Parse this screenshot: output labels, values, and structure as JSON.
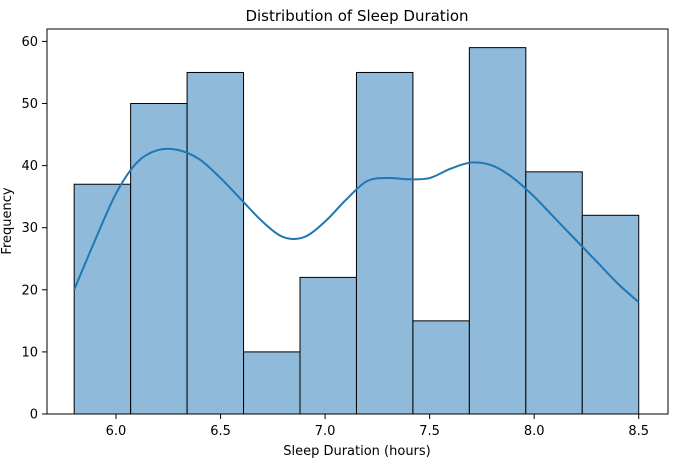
{
  "chart_data": {
    "type": "bar",
    "subtype": "histogram",
    "title": "Distribution of Sleep Duration",
    "xlabel": "Sleep Duration (hours)",
    "ylabel": "Frequency",
    "xlim": [
      5.67,
      8.64
    ],
    "ylim": [
      0,
      62
    ],
    "xticks": [
      6.0,
      6.5,
      7.0,
      7.5,
      8.0,
      8.5
    ],
    "xtick_labels": [
      "6.0",
      "6.5",
      "7.0",
      "7.5",
      "8.0",
      "8.5"
    ],
    "yticks": [
      0,
      10,
      20,
      30,
      40,
      50,
      60
    ],
    "ytick_labels": [
      "0",
      "10",
      "20",
      "30",
      "40",
      "50",
      "60"
    ],
    "bins": [
      {
        "x0": 5.8,
        "x1": 6.07,
        "count": 37
      },
      {
        "x0": 6.07,
        "x1": 6.34,
        "count": 50
      },
      {
        "x0": 6.34,
        "x1": 6.61,
        "count": 55
      },
      {
        "x0": 6.61,
        "x1": 6.88,
        "count": 10
      },
      {
        "x0": 6.88,
        "x1": 7.15,
        "count": 22
      },
      {
        "x0": 7.15,
        "x1": 7.42,
        "count": 55
      },
      {
        "x0": 7.42,
        "x1": 7.69,
        "count": 15
      },
      {
        "x0": 7.69,
        "x1": 7.96,
        "count": 59
      },
      {
        "x0": 7.96,
        "x1": 8.23,
        "count": 39
      },
      {
        "x0": 8.23,
        "x1": 8.5,
        "count": 32
      }
    ],
    "kde_curve": {
      "x": [
        5.8,
        5.9,
        6.0,
        6.1,
        6.2,
        6.3,
        6.4,
        6.5,
        6.6,
        6.7,
        6.8,
        6.9,
        7.0,
        7.1,
        7.2,
        7.3,
        7.4,
        7.5,
        7.6,
        7.7,
        7.8,
        7.9,
        8.0,
        8.1,
        8.2,
        8.3,
        8.4,
        8.5
      ],
      "y": [
        20,
        28,
        35.5,
        40.5,
        42.5,
        42.5,
        41,
        38,
        34.5,
        31,
        28.5,
        28.5,
        31,
        34.5,
        37.5,
        38,
        37.8,
        38,
        39.5,
        40.5,
        40,
        38,
        35,
        31.5,
        28,
        24.5,
        21,
        18
      ]
    },
    "grid": false,
    "legend": "none",
    "colors": {
      "bar_fill": "#8fbad9",
      "bar_edge": "#000000",
      "kde_line": "#1f77b4"
    }
  }
}
